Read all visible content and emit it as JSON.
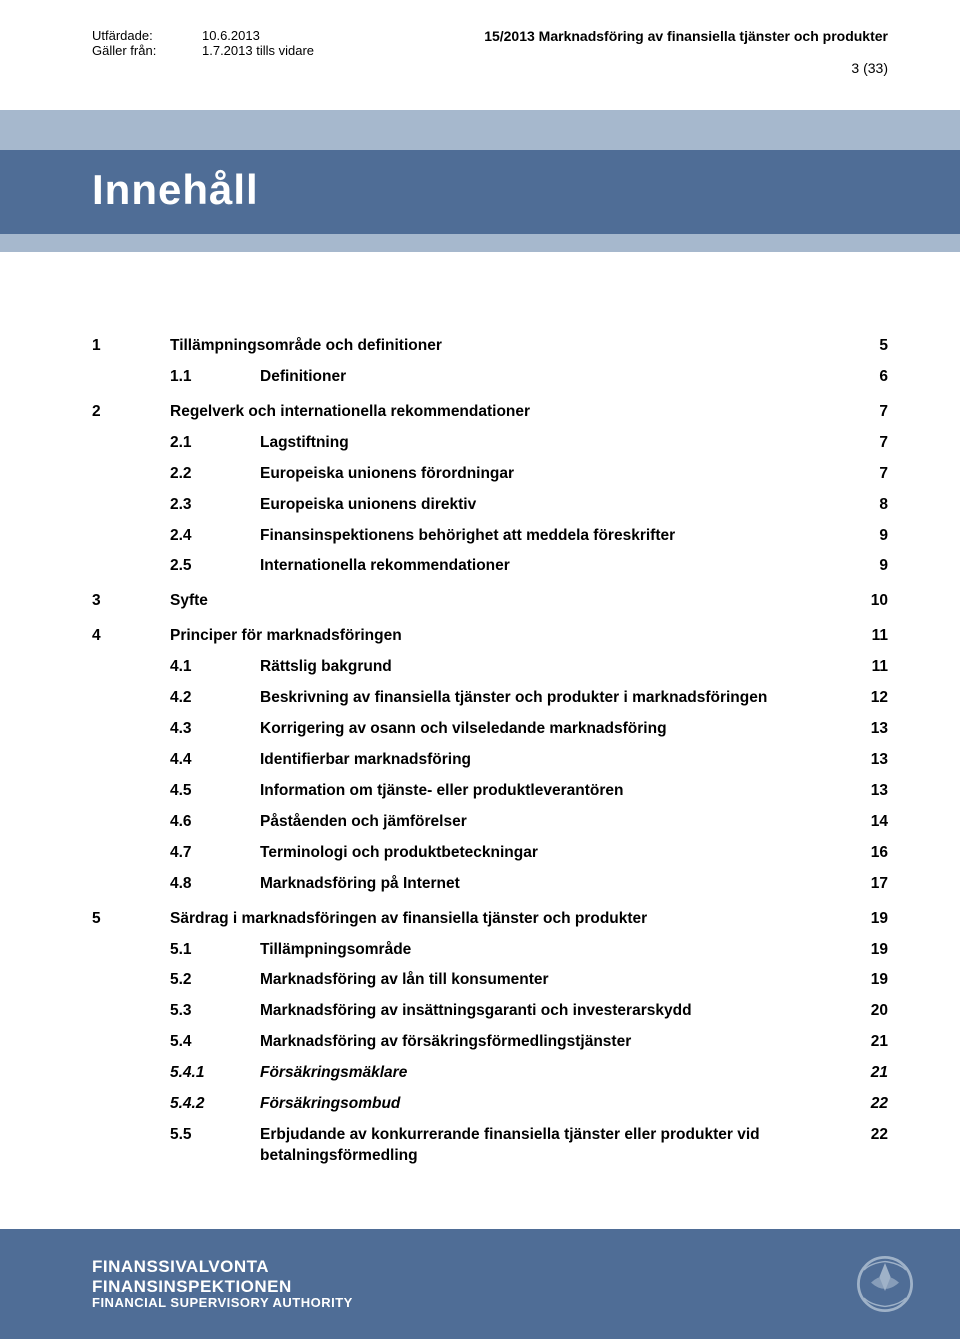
{
  "header": {
    "issued_label": "Utfärdade:",
    "issued_value": "10.6.2013",
    "valid_label": "Gäller från:",
    "valid_value": "1.7.2013 tills vidare",
    "doc_title": "15/2013 Marknadsföring av finansiella tjänster och produkter",
    "page_number": "3 (33)"
  },
  "title": "Innehåll",
  "colors": {
    "band_light": "#a6b8cd",
    "band_dark": "#4f6d96",
    "text": "#000000",
    "footer_text": "#ffffff"
  },
  "toc": [
    {
      "type": "section",
      "num": "1",
      "title": "Tillämpningsområde och definitioner",
      "page": "5"
    },
    {
      "type": "sub",
      "num": "1.1",
      "title": "Definitioner",
      "page": "6"
    },
    {
      "type": "section",
      "num": "2",
      "title": "Regelverk och internationella rekommendationer",
      "page": "7"
    },
    {
      "type": "sub",
      "num": "2.1",
      "title": "Lagstiftning",
      "page": "7"
    },
    {
      "type": "sub",
      "num": "2.2",
      "title": "Europeiska unionens förordningar",
      "page": "7"
    },
    {
      "type": "sub",
      "num": "2.3",
      "title": "Europeiska unionens direktiv",
      "page": "8"
    },
    {
      "type": "sub",
      "num": "2.4",
      "title": "Finansinspektionens behörighet att meddela föreskrifter",
      "page": "9"
    },
    {
      "type": "sub",
      "num": "2.5",
      "title": "Internationella rekommendationer",
      "page": "9"
    },
    {
      "type": "section",
      "num": "3",
      "title": "Syfte",
      "page": "10"
    },
    {
      "type": "section",
      "num": "4",
      "title": "Principer för marknadsföringen",
      "page": "11"
    },
    {
      "type": "sub",
      "num": "4.1",
      "title": "Rättslig bakgrund",
      "page": "11"
    },
    {
      "type": "sub",
      "num": "4.2",
      "title": "Beskrivning av finansiella tjänster och produkter i marknadsföringen",
      "page": "12"
    },
    {
      "type": "sub",
      "num": "4.3",
      "title": "Korrigering av osann och vilseledande marknadsföring",
      "page": "13"
    },
    {
      "type": "sub",
      "num": "4.4",
      "title": "Identifierbar marknadsföring",
      "page": "13"
    },
    {
      "type": "sub",
      "num": "4.5",
      "title": "Information om tjänste- eller produktleverantören",
      "page": "13"
    },
    {
      "type": "sub",
      "num": "4.6",
      "title": "Påståenden och jämförelser",
      "page": "14"
    },
    {
      "type": "sub",
      "num": "4.7",
      "title": "Terminologi och produktbeteckningar",
      "page": "16"
    },
    {
      "type": "sub",
      "num": "4.8",
      "title": "Marknadsföring på Internet",
      "page": "17"
    },
    {
      "type": "section",
      "num": "5",
      "title": "Särdrag i marknadsföringen av finansiella tjänster och produkter",
      "page": "19"
    },
    {
      "type": "sub",
      "num": "5.1",
      "title": "Tillämpningsområde",
      "page": "19"
    },
    {
      "type": "sub",
      "num": "5.2",
      "title": "Marknadsföring av lån till konsumenter",
      "page": "19"
    },
    {
      "type": "sub",
      "num": "5.3",
      "title": "Marknadsföring av insättningsgaranti och investerarskydd",
      "page": "20"
    },
    {
      "type": "sub",
      "num": "5.4",
      "title": "Marknadsföring av försäkringsförmedlingstjänster",
      "page": "21"
    },
    {
      "type": "sub",
      "num": "5.4.1",
      "title": "Försäkringsmäklare",
      "page": "21",
      "italic": true
    },
    {
      "type": "sub",
      "num": "5.4.2",
      "title": "Försäkringsombud",
      "page": "22",
      "italic": true
    },
    {
      "type": "sub",
      "num": "5.5",
      "title": "Erbjudande av konkurrerande finansiella tjänster eller produkter vid betalningsförmedling",
      "page": "22"
    }
  ],
  "footer": {
    "line1": "FINANSSIVALVONTA",
    "line2": "FINANSINSPEKTIONEN",
    "line3": "FINANCIAL SUPERVISORY AUTHORITY"
  }
}
